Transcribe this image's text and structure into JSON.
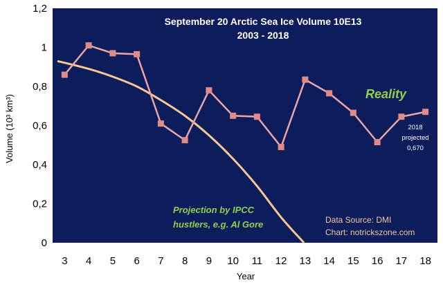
{
  "chart_data": {
    "type": "line",
    "title": "September 20 Arctic Sea Ice Volume 10E13",
    "subtitle": "2003 - 2018",
    "xlabel": "Year",
    "ylabel": "Volume (10³ km³)",
    "ylim": [
      0,
      1.2
    ],
    "y_ticks": [
      "0",
      "0,2",
      "0,4",
      "0,6",
      "0,8",
      "1",
      "1,2"
    ],
    "x": [
      3,
      4,
      5,
      6,
      7,
      8,
      9,
      10,
      11,
      12,
      13,
      14,
      15,
      16,
      17,
      18
    ],
    "series": [
      {
        "name": "Reality",
        "color": "#e8a8a8",
        "values": [
          0.86,
          1.01,
          0.97,
          0.965,
          0.61,
          0.525,
          0.78,
          0.65,
          0.645,
          0.49,
          0.835,
          0.765,
          0.665,
          0.515,
          0.645,
          0.67
        ]
      },
      {
        "name": "Projection by IPCC hustlers, e.g. Al Gore",
        "color": "#f8c892",
        "x": [
          2.7,
          4,
          5,
          6,
          7,
          8,
          9,
          10,
          11,
          12,
          12.95
        ],
        "values": [
          0.93,
          0.89,
          0.85,
          0.8,
          0.73,
          0.65,
          0.55,
          0.43,
          0.29,
          0.13,
          0.0
        ]
      }
    ],
    "annotations": {
      "reality": "Reality",
      "projection_line1": "Projection by IPCC",
      "projection_line2": "hustlers, e.g. Al Gore",
      "note_line1": "2018",
      "note_line2": "projected",
      "note_line3": "0,670",
      "source": "Data Source: DMI",
      "chart_credit": "Chart: notrickszone.com"
    },
    "colors": {
      "plot_background": "#0d1c5b",
      "marker": "#e08a8a"
    }
  }
}
